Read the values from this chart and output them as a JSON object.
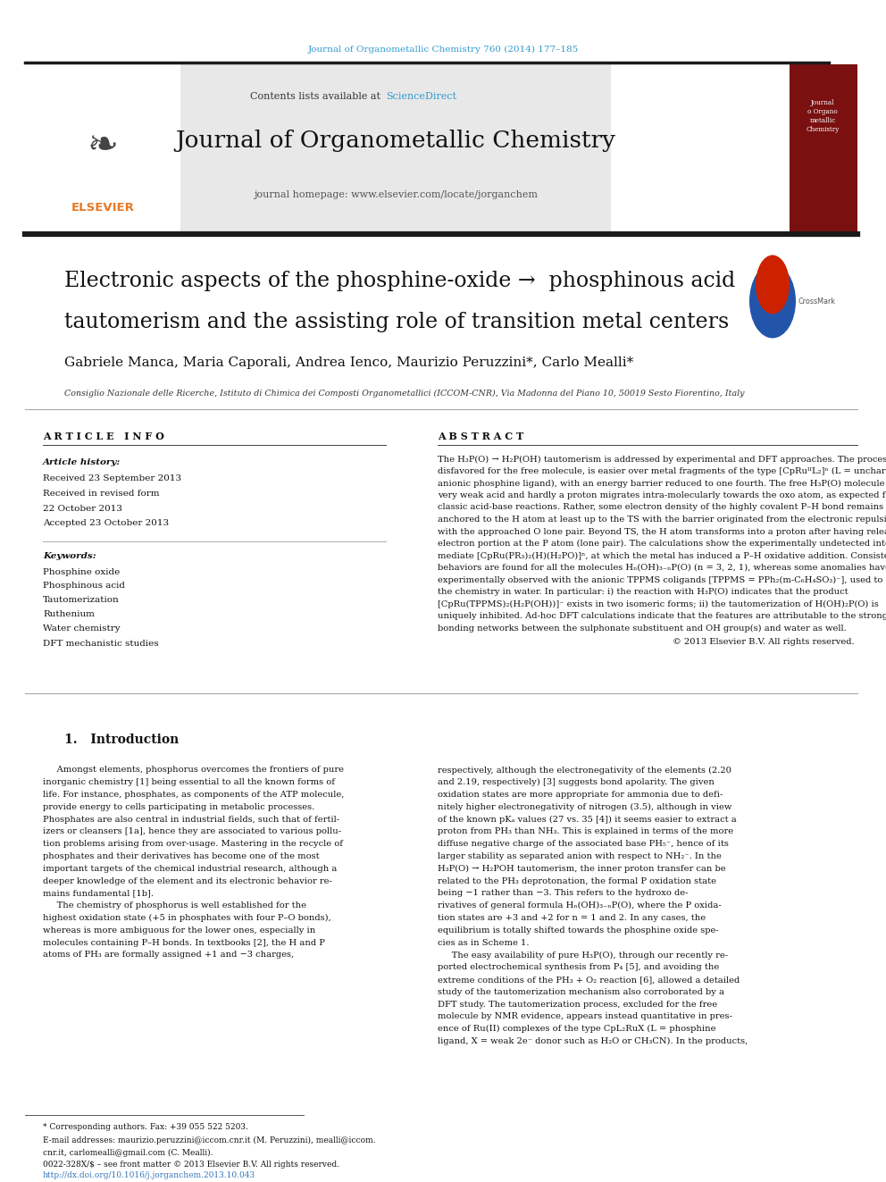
{
  "page_width": 9.92,
  "page_height": 13.23,
  "bg_color": "#ffffff",
  "journal_ref": "Journal of Organometallic Chemistry 760 (2014) 177–185",
  "journal_ref_color": "#3399cc",
  "sciencedirect_color": "#3399cc",
  "journal_title": "Journal of Organometallic Chemistry",
  "journal_homepage": "journal homepage: www.elsevier.com/locate/jorganchem",
  "header_bg": "#e8e8e8",
  "keywords": [
    "Phosphine oxide",
    "Phosphinous acid",
    "Tautomerization",
    "Ruthenium",
    "Water chemistry",
    "DFT mechanistic studies"
  ],
  "abstract_text": "The H₃P(O) → H₂P(OH) tautomerism is addressed by experimental and DFT approaches. The process,\ndisfavored for the free molecule, is easier over metal fragments of the type [CpRuᴵᴵL₂]ⁿ (L = uncharged or\nanionic phosphine ligand), with an energy barrier reduced to one fourth. The free H₃P(O) molecule is a\nvery weak acid and hardly a proton migrates intra-molecularly towards the oxo atom, as expected for\nclassic acid-base reactions. Rather, some electron density of the highly covalent P–H bond remains\nanchored to the H atom at least up to the TS with the barrier originated from the electronic repulsion\nwith the approached O lone pair. Beyond TS, the H atom transforms into a proton after having released its\nelectron portion at the P atom (lone pair). The calculations show the experimentally undetected inter-\nmediate [CpRu(PR₃)₂(H)(H₂PO)]ⁿ, at which the metal has induced a P–H oxidative addition. Consistent\nbehaviors are found for all the molecules Hₙ(OH)₃₋ₙP(O) (n = 3, 2, 1), whereas some anomalies have been\nexperimentally observed with the anionic TPPMS coligands [TPPMS = PPh₂(m-C₆H₄SO₃)⁻], used to favor\nthe chemistry in water. In particular: i) the reaction with H₃P(O) indicates that the product\n[CpRu(TPPMS)₂(H₂P(OH))]⁻ exists in two isomeric forms; ii) the tautomerization of H(OH)₂P(O) is\nuniquely inhibited. Ad-hoc DFT calculations indicate that the features are attributable to the strong H-\nbonding networks between the sulphonate substituent and OH group(s) and water as well.",
  "intro_title": "1.   Introduction",
  "intro_left_lines": [
    "     Amongst elements, phosphorus overcomes the frontiers of pure",
    "inorganic chemistry [1] being essential to all the known forms of",
    "life. For instance, phosphates, as components of the ATP molecule,",
    "provide energy to cells participating in metabolic processes.",
    "Phosphates are also central in industrial fields, such that of fertil-",
    "izers or cleansers [1a], hence they are associated to various pollu-",
    "tion problems arising from over-usage. Mastering in the recycle of",
    "phosphates and their derivatives has become one of the most",
    "important targets of the chemical industrial research, although a",
    "deeper knowledge of the element and its electronic behavior re-",
    "mains fundamental [1b].",
    "     The chemistry of phosphorus is well established for the",
    "highest oxidation state (+5 in phosphates with four P–O bonds),",
    "whereas is more ambiguous for the lower ones, especially in",
    "molecules containing P–H bonds. In textbooks [2], the H and P",
    "atoms of PH₃ are formally assigned +1 and −3 charges,"
  ],
  "intro_right_lines": [
    "respectively, although the electronegativity of the elements (2.20",
    "and 2.19, respectively) [3] suggests bond apolarity. The given",
    "oxidation states are more appropriate for ammonia due to defi-",
    "nitely higher electronegativity of nitrogen (3.5), although in view",
    "of the known pKₐ values (27 vs. 35 [4]) it seems easier to extract a",
    "proton from PH₃ than NH₃. This is explained in terms of the more",
    "diffuse negative charge of the associated base PH₅⁻, hence of its",
    "larger stability as separated anion with respect to NH₂⁻. In the",
    "H₃P(O) → H₂POH tautomerism, the inner proton transfer can be",
    "related to the PH₃ deprotonation, the formal P oxidation state",
    "being −1 rather than −3. This refers to the hydroxo de-",
    "rivatives of general formula Hₙ(OH)₃₋ₙP(O), where the P oxida-",
    "tion states are +3 and +2 for n = 1 and 2. In any cases, the",
    "equilibrium is totally shifted towards the phosphine oxide spe-",
    "cies as in Scheme 1.",
    "     The easy availability of pure H₃P(O), through our recently re-",
    "ported electrochemical synthesis from P₄ [5], and avoiding the",
    "extreme conditions of the PH₃ + O₂ reaction [6], allowed a detailed",
    "study of the tautomerization mechanism also corroborated by a",
    "DFT study. The tautomerization process, excluded for the free",
    "molecule by NMR evidence, appears instead quantitative in pres-",
    "ence of Ru(II) complexes of the type CpL₂RuX (L = phosphine",
    "ligand, X = weak 2e⁻ donor such as H₂O or CH₃CN). In the products,"
  ],
  "black_bar_color": "#1a1a1a",
  "link_color": "#3377bb",
  "elsevier_orange": "#e87722"
}
